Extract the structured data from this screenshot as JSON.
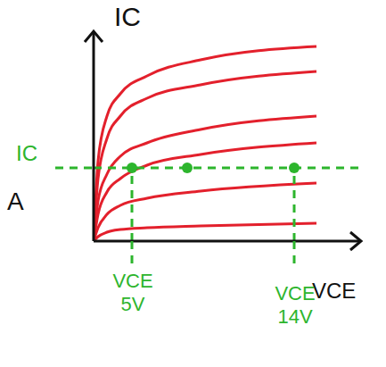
{
  "chart_data": {
    "type": "line",
    "x_label": "VCE",
    "y_label": "IC",
    "panel_label": "A",
    "x": [
      0,
      5,
      15,
      30,
      60,
      120,
      250
    ],
    "series": [
      {
        "color": "#e3202c",
        "values": [
          0,
          90,
          140,
          165,
          185,
          203,
          218
        ]
      },
      {
        "color": "#e3202c",
        "values": [
          0,
          70,
          115,
          140,
          160,
          175,
          190
        ]
      },
      {
        "color": "#e3202c",
        "values": [
          0,
          45,
          75,
          95,
          110,
          125,
          140
        ]
      },
      {
        "color": "#e3202c",
        "values": [
          0,
          30,
          55,
          70,
          85,
          97,
          110
        ]
      },
      {
        "color": "#e3202c",
        "values": [
          0,
          15,
          30,
          40,
          48,
          56,
          65
        ]
      },
      {
        "color": "#e3202c",
        "values": [
          0,
          5,
          10,
          13,
          15,
          17,
          20
        ]
      }
    ],
    "xlim": [
      0,
      300
    ],
    "ylim": [
      0,
      235
    ],
    "tick_labels": false,
    "grid": false,
    "level": {
      "label": "IC",
      "y": 82,
      "color": "#2db52d",
      "line_style": "dashed"
    },
    "markers": [
      {
        "label": "VCE",
        "value_label": "5V",
        "x": 43,
        "color": "#2db52d",
        "line_style": "dashed"
      },
      {
        "label": "VCE",
        "value_label": "14V",
        "x": 225,
        "color": "#2db52d",
        "line_style": "dashed"
      }
    ],
    "points": {
      "x": [
        43,
        105,
        225
      ],
      "y": [
        82,
        82,
        82
      ],
      "color": "#2db52d"
    }
  }
}
